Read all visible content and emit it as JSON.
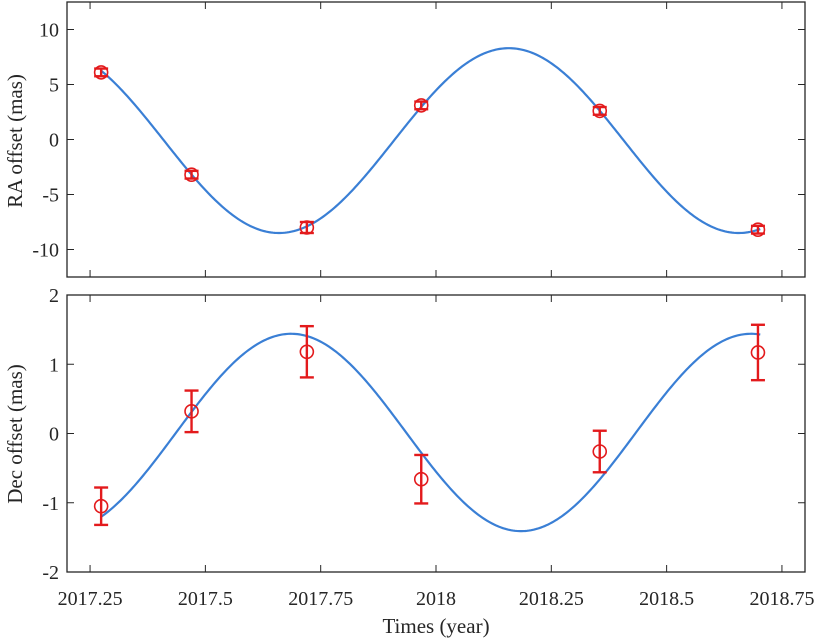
{
  "colors": {
    "model": "#3a7fd5",
    "data": "#e31a1c",
    "axis": "#262626"
  },
  "chart_data": [
    {
      "type": "scatter",
      "title": "",
      "xlabel": "",
      "ylabel": "RA offset (mas)",
      "xlim": [
        2017.2,
        2018.8
      ],
      "ylim": [
        -12.5,
        12.5
      ],
      "yticks": [
        -10,
        -5,
        0,
        5,
        10
      ],
      "ytick_labels": [
        "-10",
        "-5",
        "0",
        "5",
        "10"
      ],
      "grid": false,
      "markers": "open-circle-with-error-bars",
      "series": [
        {
          "x": [
            2017.274,
            2017.47,
            2017.72,
            2017.968,
            2018.355,
            2018.698
          ],
          "y": [
            6.1,
            -3.2,
            -8.0,
            3.1,
            2.6,
            -8.2
          ],
          "yerr": [
            0.35,
            0.35,
            0.5,
            0.35,
            0.35,
            0.35
          ]
        }
      ],
      "model_curve": {
        "offset": -0.1,
        "amplitude": 8.4,
        "period": 0.9969,
        "peak_epoch": 2018.158
      }
    },
    {
      "type": "scatter",
      "title": "",
      "xlabel": "Times (year)",
      "ylabel": "Dec offset (mas)",
      "xlim": [
        2017.2,
        2018.8
      ],
      "ylim": [
        -2.0,
        2.0
      ],
      "xticks": [
        2017.25,
        2017.5,
        2017.75,
        2018.0,
        2018.25,
        2018.5,
        2018.75
      ],
      "xtick_labels": [
        "2017.25",
        "2017.5",
        "2017.75",
        "2018",
        "2018.25",
        "2018.5",
        "2018.75"
      ],
      "yticks": [
        -2,
        -1,
        0,
        1,
        2
      ],
      "ytick_labels": [
        "-2",
        "-1",
        "0",
        "1",
        "2"
      ],
      "grid": false,
      "markers": "open-circle-with-error-bars",
      "series": [
        {
          "x": [
            2017.274,
            2017.47,
            2017.72,
            2017.968,
            2018.355,
            2018.698
          ],
          "y": [
            -1.05,
            0.32,
            1.18,
            -0.66,
            -0.26,
            1.17
          ],
          "yerr": [
            0.27,
            0.3,
            0.37,
            0.35,
            0.3,
            0.4
          ]
        }
      ],
      "model_curve": {
        "offset": 0.015,
        "amplitude": 1.425,
        "period": 0.9969,
        "peak_epoch": 2017.686
      }
    }
  ]
}
